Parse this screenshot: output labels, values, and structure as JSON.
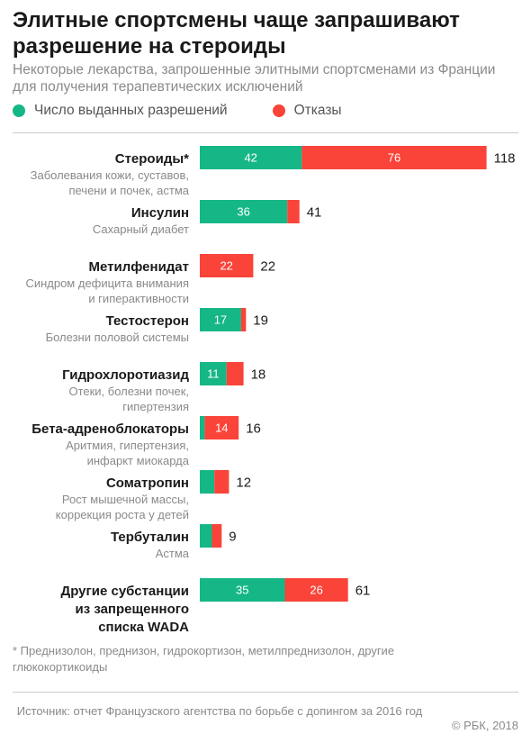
{
  "title": "Элитные спортсмены чаще запрашивают разрешение на стероиды",
  "subtitle": "Некоторые лекарства, запрошенные элитными спортсменами из Франции для получения терапевтических исключений",
  "legend": {
    "approved": "Число выданных разрешений",
    "denied": "Отказы"
  },
  "colors": {
    "approved": "#16b787",
    "denied": "#fa4339"
  },
  "chart_data": {
    "type": "bar",
    "orientation": "horizontal",
    "stacked": true,
    "categories": [
      {
        "name": [
          "Стероиды*"
        ],
        "description": [
          "Заболевания кожи, суставов,",
          "печени и почек, астма"
        ]
      },
      {
        "name": [
          "Инсулин"
        ],
        "description": [
          "Сахарный диабет"
        ]
      },
      {
        "name": [
          "Метилфенидат"
        ],
        "description": [
          "Синдром дефицита внимания",
          "и гиперактивности"
        ]
      },
      {
        "name": [
          "Тестостерон"
        ],
        "description": [
          "Болезни половой системы"
        ]
      },
      {
        "name": [
          "Гидрохлоротиазид"
        ],
        "description": [
          "Отеки, болезни почек,",
          "гипертензия"
        ]
      },
      {
        "name": [
          "Бета-адреноблокаторы"
        ],
        "description": [
          "Аритмия, гипертензия,",
          "инфаркт миокарда"
        ]
      },
      {
        "name": [
          "Соматропин"
        ],
        "description": [
          "Рост мышечной массы,",
          "коррекция роста у детей"
        ]
      },
      {
        "name": [
          "Тербуталин"
        ],
        "description": [
          "Астма"
        ]
      },
      {
        "name": [
          "Другие субстанции",
          "из запрещенного",
          "списка WADA"
        ],
        "description": []
      }
    ],
    "series": [
      {
        "name": "Число выданных разрешений",
        "values": [
          42,
          36,
          0,
          17,
          11,
          2,
          6,
          5,
          35
        ],
        "labels": [
          "42",
          "36",
          "",
          "17",
          "11",
          "",
          "",
          "",
          "35"
        ]
      },
      {
        "name": "Отказы",
        "values": [
          76,
          5,
          22,
          2,
          7,
          14,
          6,
          4,
          26
        ],
        "labels": [
          "76",
          "",
          "22",
          "",
          "",
          "14",
          "",
          "",
          "26"
        ]
      }
    ],
    "totals": [
      118,
      41,
      22,
      19,
      18,
      16,
      12,
      9,
      61
    ]
  },
  "footnote": "* Преднизолон, преднизон, гидрокортизон, метилпреднизолон, другие глюкокортикоиды",
  "source": "Источник: отчет Французского агентства по борьбе с допингом за 2016 год",
  "copyright": "© РБК, 2018"
}
